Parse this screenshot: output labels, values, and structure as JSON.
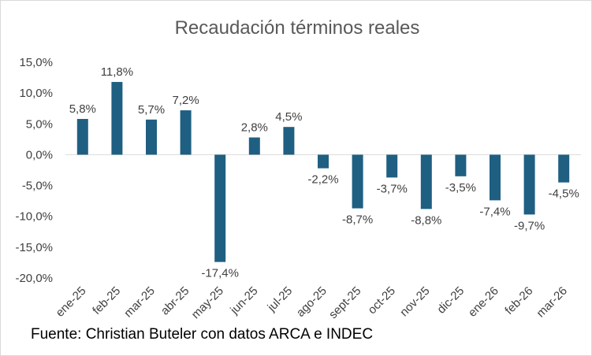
{
  "chart_data": {
    "type": "bar",
    "title": "Recaudación términos reales",
    "categories": [
      "ene-25",
      "feb-25",
      "mar-25",
      "abr-25",
      "may-25",
      "jun-25",
      "jul-25",
      "ago-25",
      "sept-25",
      "oct-25",
      "nov-25",
      "dic-25",
      "ene-26",
      "feb-26",
      "mar-26"
    ],
    "values": [
      5.8,
      11.8,
      5.7,
      7.2,
      -17.4,
      2.8,
      4.5,
      -2.2,
      -8.7,
      -3.7,
      -8.8,
      -3.5,
      -7.4,
      -9.7,
      -4.5
    ],
    "data_labels": [
      "5,8%",
      "11,8%",
      "5,7%",
      "7,2%",
      "-17,4%",
      "2,8%",
      "4,5%",
      "-2,2%",
      "-8,7%",
      "-3,7%",
      "-8,8%",
      "-3,5%",
      "-7,4%",
      "-9,7%",
      "-4,5%"
    ],
    "ylim": [
      -20,
      15
    ],
    "yticks": [
      15,
      10,
      5,
      0,
      -5,
      -10,
      -15,
      -20
    ],
    "ytick_labels": [
      "15,0%",
      "10,0%",
      "5,0%",
      "0,0%",
      "-5,0%",
      "-10,0%",
      "-15,0%",
      "-20,0%"
    ],
    "xlabel": "",
    "ylabel": "",
    "grid": false,
    "legend": false,
    "bar_color": "#1f5f82",
    "axis_color": "#d9d9d9"
  },
  "footer": {
    "source": "Fuente: Christian Buteler con datos ARCA e INDEC"
  }
}
